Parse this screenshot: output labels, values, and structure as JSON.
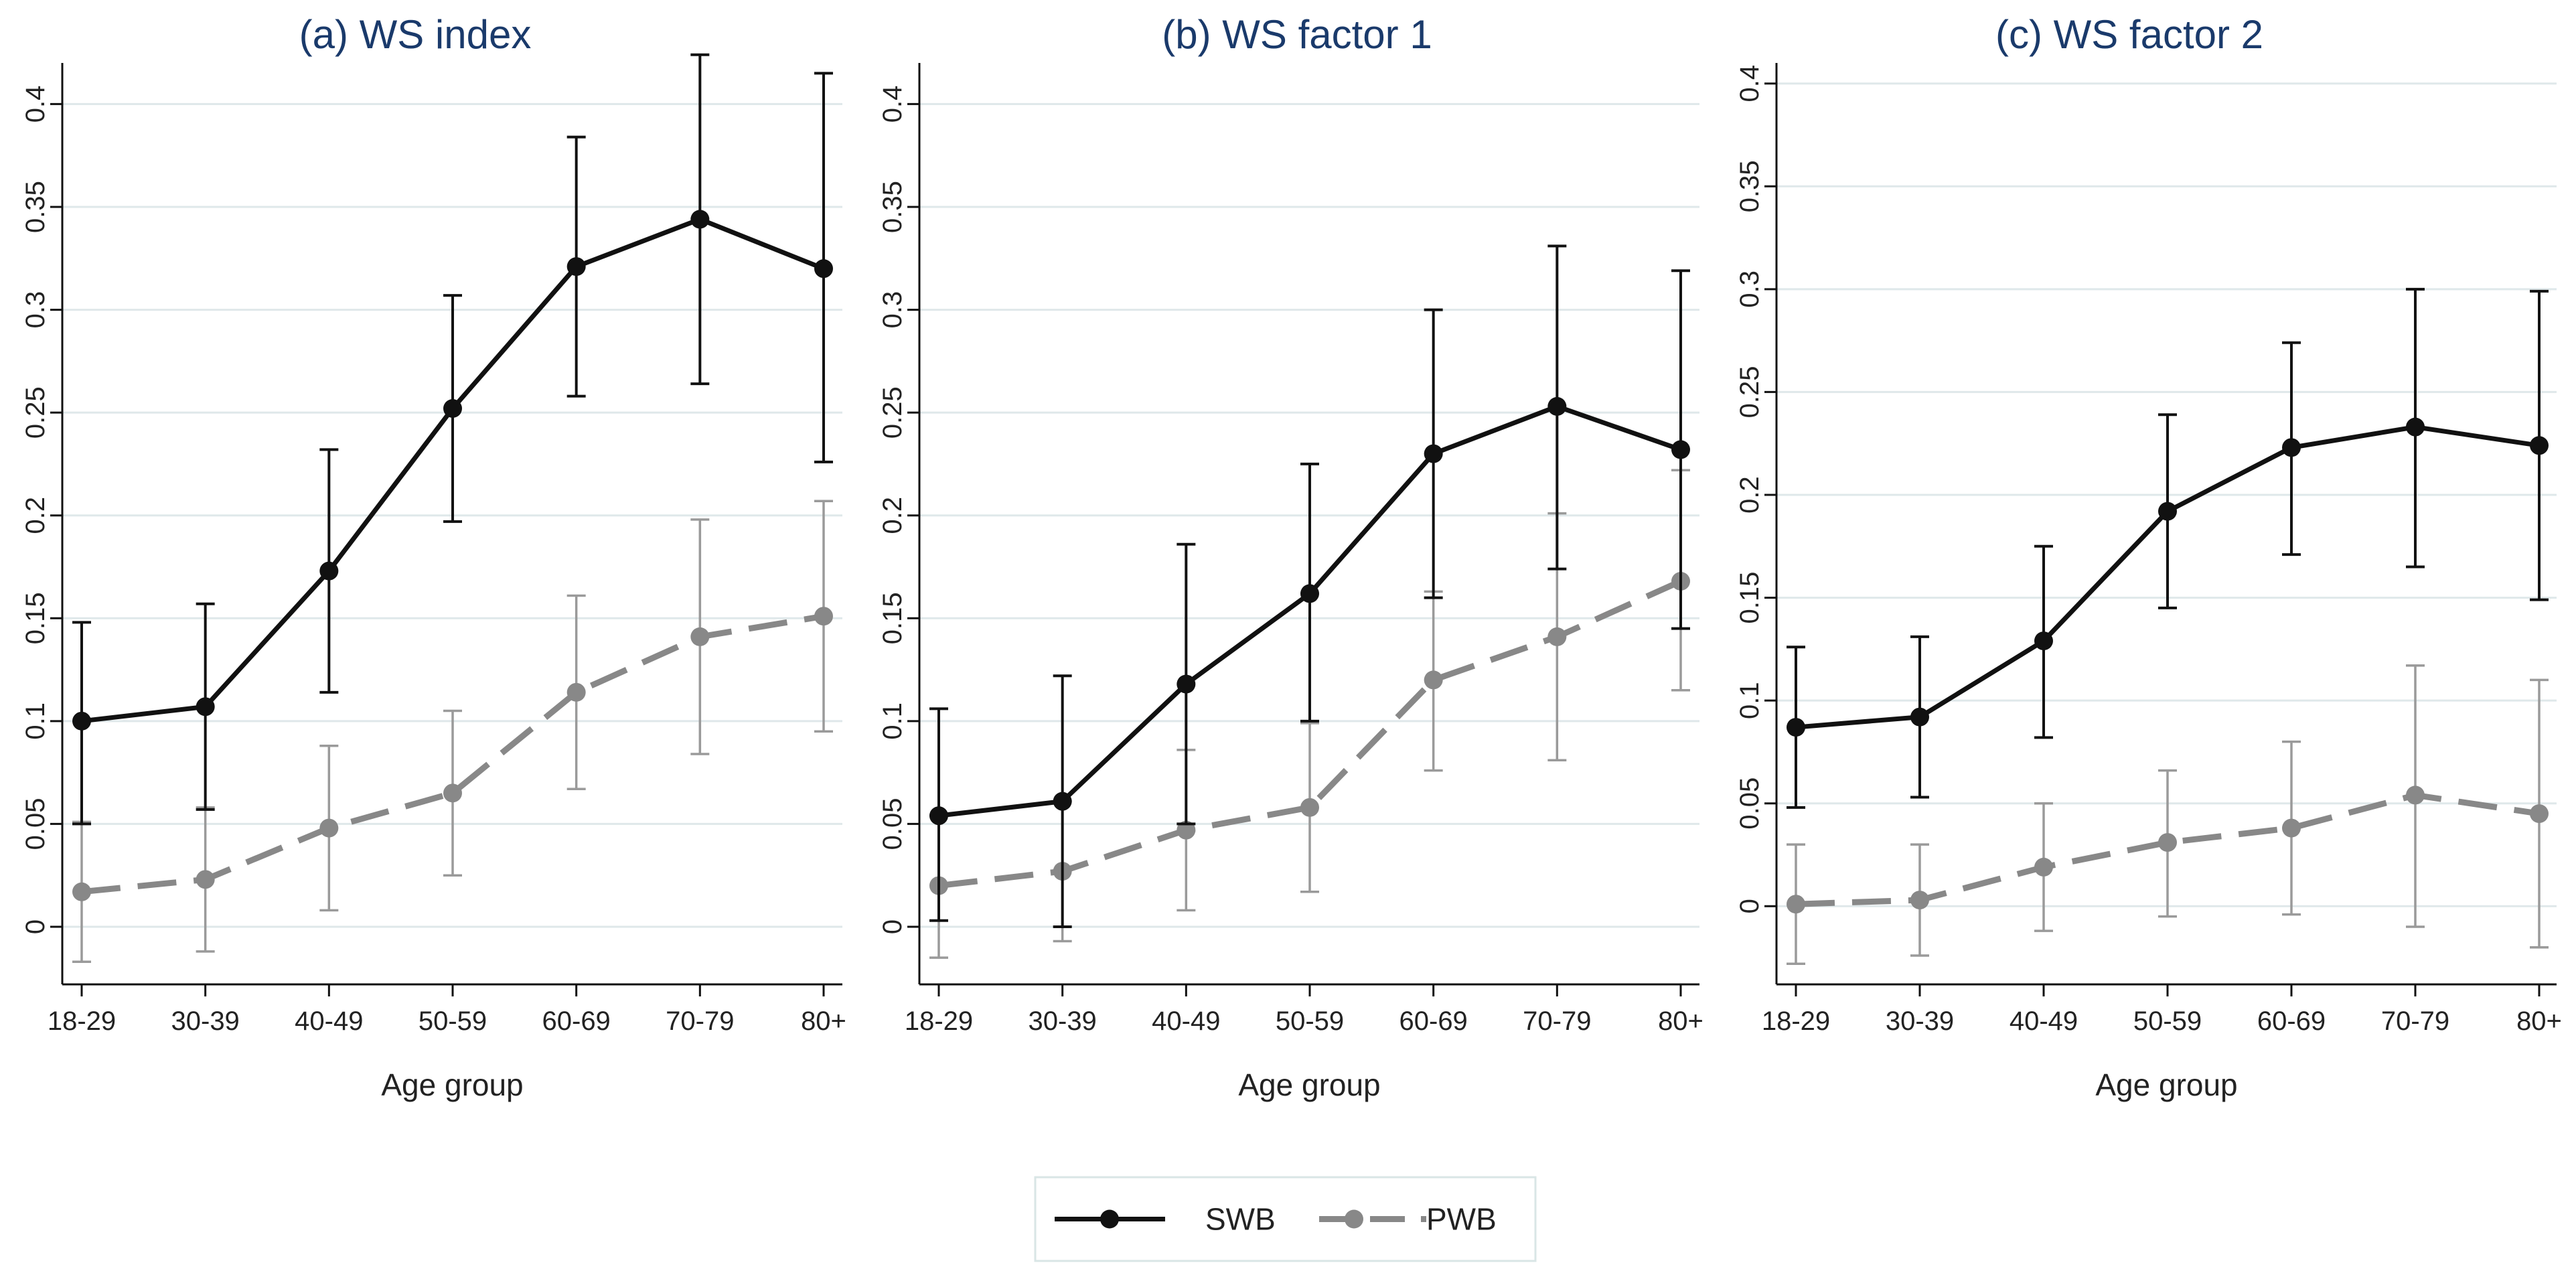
{
  "chart_data": [
    {
      "type": "line",
      "title": "(a) WS index",
      "xlabel": "Age group",
      "ylabel": "",
      "categories": [
        "18-29",
        "30-39",
        "40-49",
        "50-59",
        "60-69",
        "70-79",
        "80+"
      ],
      "ylim": [
        -0.028,
        0.42
      ],
      "yticks": [
        "0",
        "0.05",
        "0.1",
        "0.15",
        "0.2",
        "0.25",
        "0.3",
        "0.35",
        "0.4"
      ],
      "grid": true,
      "series": [
        {
          "name": "SWB",
          "color": "#111111",
          "values": [
            0.1,
            0.107,
            0.173,
            0.252,
            0.321,
            0.344,
            0.32
          ],
          "lower": [
            0.05,
            0.057,
            0.114,
            0.197,
            0.258,
            0.264,
            0.226
          ],
          "upper": [
            0.148,
            0.157,
            0.232,
            0.307,
            0.384,
            0.424,
            0.415
          ]
        },
        {
          "name": "PWB",
          "color": "#888888",
          "values": [
            0.017,
            0.023,
            0.048,
            0.065,
            0.114,
            0.141,
            0.151
          ],
          "lower": [
            -0.017,
            -0.012,
            0.008,
            0.025,
            0.067,
            0.084,
            0.095
          ],
          "upper": [
            0.051,
            0.058,
            0.088,
            0.105,
            0.161,
            0.198,
            0.207
          ]
        }
      ]
    },
    {
      "type": "line",
      "title": "(b) WS factor 1",
      "xlabel": "Age group",
      "ylabel": "",
      "categories": [
        "18-29",
        "30-39",
        "40-49",
        "50-59",
        "60-69",
        "70-79",
        "80+"
      ],
      "ylim": [
        -0.028,
        0.42
      ],
      "yticks": [
        "0",
        "0.05",
        "0.1",
        "0.15",
        "0.2",
        "0.25",
        "0.3",
        "0.35",
        "0.4"
      ],
      "grid": true,
      "series": [
        {
          "name": "SWB",
          "color": "#111111",
          "values": [
            0.054,
            0.061,
            0.118,
            0.162,
            0.23,
            0.253,
            0.232
          ],
          "lower": [
            0.003,
            0.0,
            0.05,
            0.1,
            0.16,
            0.174,
            0.145
          ],
          "upper": [
            0.106,
            0.122,
            0.186,
            0.225,
            0.3,
            0.331,
            0.319
          ]
        },
        {
          "name": "PWB",
          "color": "#888888",
          "values": [
            0.02,
            0.027,
            0.047,
            0.058,
            0.12,
            0.141,
            0.168
          ],
          "lower": [
            -0.015,
            -0.007,
            0.008,
            0.017,
            0.076,
            0.081,
            0.115
          ],
          "upper": [
            0.054,
            0.061,
            0.086,
            0.099,
            0.163,
            0.201,
            0.222
          ]
        }
      ]
    },
    {
      "type": "line",
      "title": "(c) WS factor 2",
      "xlabel": "Age group",
      "ylabel": "",
      "categories": [
        "18-29",
        "30-39",
        "40-49",
        "50-59",
        "60-69",
        "70-79",
        "80+"
      ],
      "ylim": [
        -0.038,
        0.41
      ],
      "yticks": [
        "0",
        "0.05",
        "0.1",
        "0.15",
        "0.2",
        "0.25",
        "0.3",
        "0.35",
        "0.4"
      ],
      "grid": true,
      "series": [
        {
          "name": "SWB",
          "color": "#111111",
          "values": [
            0.087,
            0.092,
            0.129,
            0.192,
            0.223,
            0.233,
            0.224
          ],
          "lower": [
            0.048,
            0.053,
            0.082,
            0.145,
            0.171,
            0.165,
            0.149
          ],
          "upper": [
            0.126,
            0.131,
            0.175,
            0.239,
            0.274,
            0.3,
            0.299
          ]
        },
        {
          "name": "PWB",
          "color": "#888888",
          "values": [
            0.001,
            0.003,
            0.019,
            0.031,
            0.038,
            0.054,
            0.045
          ],
          "lower": [
            -0.028,
            -0.024,
            -0.012,
            -0.005,
            -0.004,
            -0.01,
            -0.02
          ],
          "upper": [
            0.03,
            0.03,
            0.05,
            0.066,
            0.08,
            0.117,
            0.11
          ]
        }
      ]
    }
  ],
  "legend": {
    "items": [
      {
        "label": "SWB",
        "color": "#111111",
        "dashed": false
      },
      {
        "label": "PWB",
        "color": "#888888",
        "dashed": true
      }
    ]
  }
}
